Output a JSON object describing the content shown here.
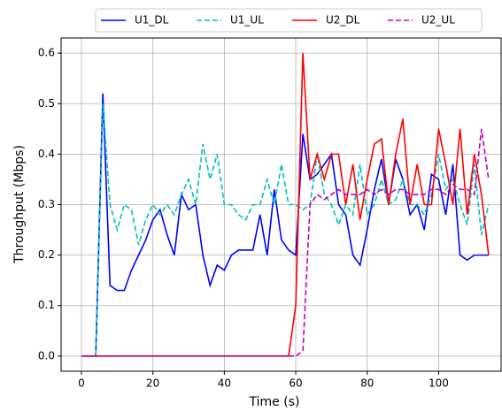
{
  "chart_data": {
    "type": "line",
    "x_label": "Time (s)",
    "y_label": "Throughput (Mbps)",
    "x": [
      0,
      2,
      4,
      6,
      8,
      10,
      12,
      14,
      16,
      18,
      20,
      22,
      24,
      26,
      28,
      30,
      32,
      34,
      36,
      38,
      40,
      42,
      44,
      46,
      48,
      50,
      52,
      54,
      56,
      58,
      60,
      62,
      64,
      66,
      68,
      70,
      72,
      74,
      76,
      78,
      80,
      82,
      84,
      86,
      88,
      90,
      92,
      94,
      96,
      98,
      100,
      102,
      104,
      106,
      108,
      110,
      112,
      114
    ],
    "series": [
      {
        "name": "U1_DL",
        "color": "#0000ff",
        "dashed": false,
        "values": [
          0,
          0,
          0,
          0.52,
          0.14,
          0.13,
          0.13,
          0.17,
          0.2,
          0.23,
          0.27,
          0.29,
          0.24,
          0.2,
          0.32,
          0.29,
          0.3,
          0.2,
          0.14,
          0.18,
          0.17,
          0.2,
          0.21,
          0.21,
          0.21,
          0.28,
          0.2,
          0.33,
          0.23,
          0.21,
          0.2,
          0.44,
          0.35,
          0.36,
          0.38,
          0.4,
          0.3,
          0.28,
          0.2,
          0.18,
          0.25,
          0.33,
          0.39,
          0.3,
          0.39,
          0.35,
          0.28,
          0.3,
          0.25,
          0.36,
          0.35,
          0.28,
          0.38,
          0.2,
          0.19,
          0.2,
          0.2,
          0.2
        ]
      },
      {
        "name": "U1_UL",
        "color": "#00bfbf",
        "dashed": true,
        "values": [
          0,
          0,
          0,
          0.5,
          0.3,
          0.25,
          0.3,
          0.29,
          0.22,
          0.27,
          0.3,
          0.28,
          0.3,
          0.28,
          0.32,
          0.35,
          0.3,
          0.42,
          0.35,
          0.4,
          0.3,
          0.3,
          0.28,
          0.27,
          0.3,
          0.3,
          0.35,
          0.3,
          0.38,
          0.3,
          0.3,
          0.29,
          0.3,
          0.4,
          0.32,
          0.3,
          0.26,
          0.3,
          0.28,
          0.38,
          0.28,
          0.3,
          0.35,
          0.3,
          0.31,
          0.35,
          0.3,
          0.3,
          0.28,
          0.32,
          0.4,
          0.33,
          0.35,
          0.3,
          0.26,
          0.38,
          0.24,
          0.3
        ]
      },
      {
        "name": "U2_DL",
        "color": "#ff0000",
        "dashed": false,
        "values": [
          0,
          0,
          0,
          0,
          0,
          0,
          0,
          0,
          0,
          0,
          0,
          0,
          0,
          0,
          0,
          0,
          0,
          0,
          0,
          0,
          0,
          0,
          0,
          0,
          0,
          0,
          0,
          0,
          0,
          0,
          0.1,
          0.6,
          0.35,
          0.4,
          0.35,
          0.4,
          0.4,
          0.3,
          0.38,
          0.27,
          0.35,
          0.42,
          0.43,
          0.3,
          0.4,
          0.47,
          0.3,
          0.38,
          0.3,
          0.3,
          0.45,
          0.38,
          0.3,
          0.45,
          0.28,
          0.4,
          0.32,
          0.2
        ]
      },
      {
        "name": "U2_UL",
        "color": "#bf00bf",
        "dashed": true,
        "values": [
          0,
          0,
          0,
          0,
          0,
          0,
          0,
          0,
          0,
          0,
          0,
          0,
          0,
          0,
          0,
          0,
          0,
          0,
          0,
          0,
          0,
          0,
          0,
          0,
          0,
          0,
          0,
          0,
          0,
          0,
          0,
          0.01,
          0.3,
          0.32,
          0.31,
          0.32,
          0.33,
          0.32,
          0.32,
          0.32,
          0.33,
          0.32,
          0.33,
          0.32,
          0.33,
          0.33,
          0.32,
          0.32,
          0.32,
          0.33,
          0.33,
          0.32,
          0.34,
          0.33,
          0.33,
          0.32,
          0.45,
          0.35
        ]
      }
    ],
    "xlim": [
      -5.7,
      117.5
    ],
    "ylim": [
      -0.03,
      0.63
    ],
    "xticks": [
      0,
      20,
      40,
      60,
      80,
      100
    ],
    "yticks": [
      {
        "value": 0,
        "label": "0.0"
      },
      0.1,
      0.2,
      0.3,
      0.4,
      0.5,
      0.6
    ],
    "grid": true,
    "legend": "top"
  }
}
